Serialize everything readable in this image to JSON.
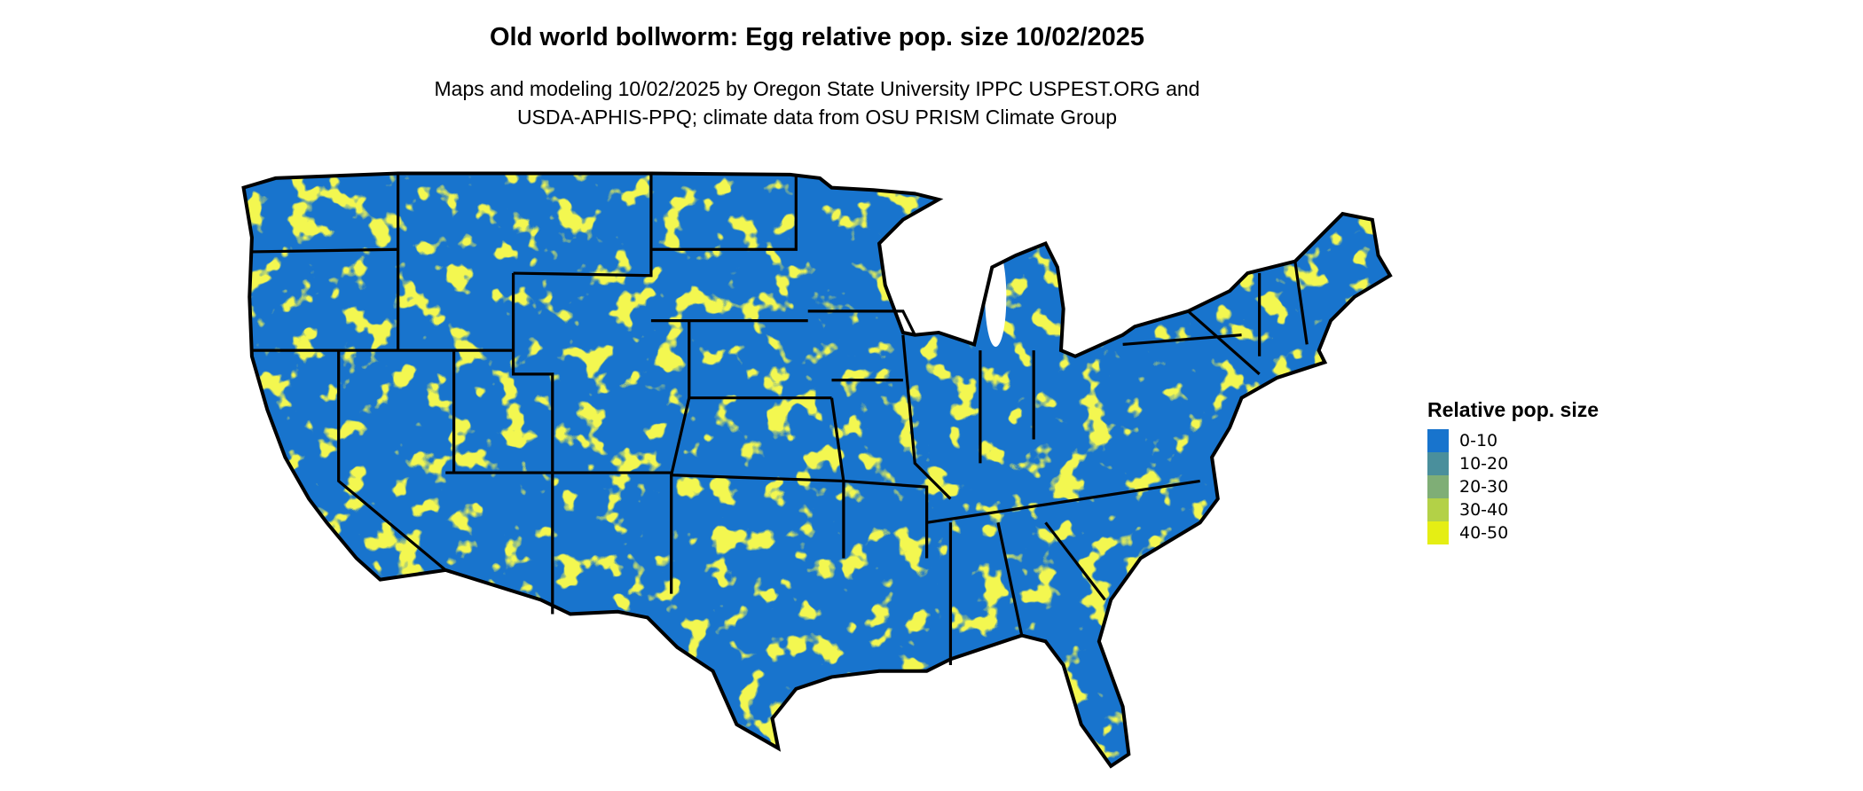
{
  "chart_data": {
    "type": "heatmap",
    "title": "Old world bollworm: Egg relative pop. size 10/02/2025",
    "subtitle_lines": [
      "Maps and modeling 10/02/2025 by Oregon State University IPPC USPEST.ORG and",
      "USDA-APHIS-PPQ; climate data from OSU PRISM Climate Group"
    ],
    "region": "Contiguous United States",
    "legend": {
      "title": "Relative pop. size",
      "placement": "right",
      "items": [
        {
          "label": "0-10",
          "color": "#1874cd"
        },
        {
          "label": "10-20",
          "color": "#4a8f9c"
        },
        {
          "label": "20-30",
          "color": "#7fae76"
        },
        {
          "label": "30-40",
          "color": "#b3d147"
        },
        {
          "label": "40-50",
          "color": "#e5ee14"
        }
      ]
    }
  }
}
